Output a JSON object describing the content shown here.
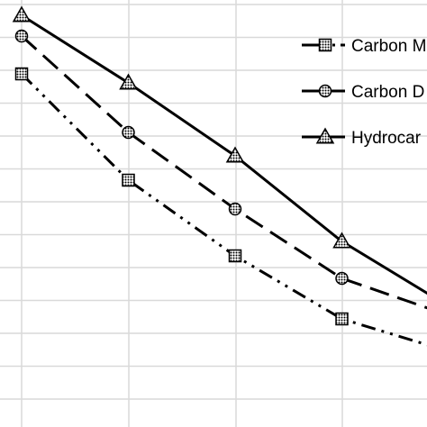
{
  "chart_data": {
    "type": "line",
    "title": "",
    "xlabel": "",
    "ylabel": "",
    "grid": true,
    "legend_position": "top-right",
    "series": [
      {
        "name": "Carbon M",
        "marker": "square",
        "line_style": "dash-dot-dot",
        "x": [
          0,
          1,
          2,
          3,
          4
        ],
        "values": [
          82,
          200,
          284,
          354,
          390
        ]
      },
      {
        "name": "Carbon D",
        "marker": "circle",
        "line_style": "dashed",
        "x": [
          0,
          1,
          2,
          3,
          4
        ],
        "values": [
          40,
          147,
          232,
          309,
          350
        ]
      },
      {
        "name": "Hydrocar",
        "marker": "triangle",
        "line_style": "solid",
        "x": [
          0,
          1,
          2,
          3,
          4
        ],
        "values": [
          17,
          92,
          173,
          268,
          340
        ]
      }
    ],
    "colors": {
      "line": "#000000",
      "grid": "#d9d9d9",
      "marker_fill": "#888888"
    }
  }
}
